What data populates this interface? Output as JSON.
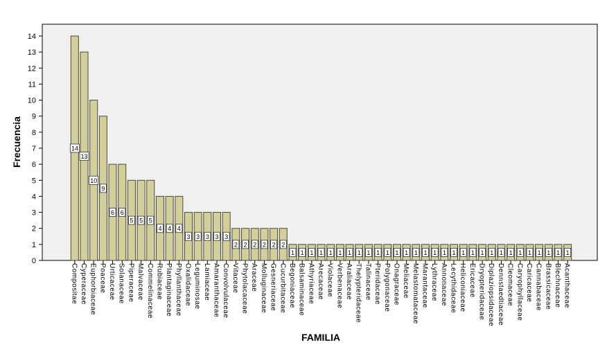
{
  "chart_data": {
    "type": "bar",
    "title": "",
    "xlabel": "FAMILIA",
    "ylabel": "Frecuencia",
    "ylim": [
      0,
      15
    ],
    "yticks": [
      0,
      1,
      2,
      3,
      4,
      5,
      6,
      7,
      8,
      9,
      10,
      11,
      12,
      13,
      14
    ],
    "grid": false,
    "data_labels": true,
    "colors": {
      "bar_fill": "#d3cf9b",
      "bar_stroke": "#4a4a3a",
      "plot_bg": "#f0f0f0"
    },
    "categories": [
      "Compositae",
      "Cyperaceae",
      "Euphorbiaceae",
      "Poaceae",
      "Urticaceae",
      "Solanaceae",
      "Piperaceae",
      "Malvaceae",
      "Commelinaceae",
      "Rubiaceae",
      "Plantaginaceae",
      "Phyllanthaceae",
      "Oxalidaceae",
      "Leguminosae",
      "Lamiaceae",
      "Amaranthaceae",
      "Convolvulaceae",
      "Vitaceae",
      "Phytolacaceae",
      "Araceae",
      "Molluginaceae",
      "Gesneriaceae",
      "Cucurbitaceae",
      "Begoniaceae",
      "Balsaminaceae",
      "Athyriaceae",
      "Arecaceae",
      "Violaceae",
      "Verbenaceae",
      "Araliaceae",
      "Thelypteridaceae",
      "Talinaceae",
      "Pteridaceae",
      "Polygonaceae",
      "Onagraceae",
      "Meliaceae",
      "Melastomataceae",
      "Marantaceae",
      "Lythraceae",
      "Annonaceae",
      "Lecythidaceae",
      "Heliconiaceae",
      "Ericaceae",
      "Dryopteridaceae",
      "Diplaziopsidaceae",
      "Dennstaedtiaceae",
      "Cleomaceae",
      "Caryophyllaceae",
      "Caricaceae",
      "Cannabaceae",
      "Brassicaceae",
      "Blechnaceae",
      "Acanthaceae"
    ],
    "values": [
      14,
      13,
      10,
      9,
      6,
      6,
      5,
      5,
      5,
      4,
      4,
      4,
      3,
      3,
      3,
      3,
      3,
      2,
      2,
      2,
      2,
      2,
      2,
      1,
      1,
      1,
      1,
      1,
      1,
      1,
      1,
      1,
      1,
      1,
      1,
      1,
      1,
      1,
      1,
      1,
      1,
      1,
      1,
      1,
      1,
      1,
      1,
      1,
      1,
      1,
      1,
      1,
      1
    ]
  }
}
